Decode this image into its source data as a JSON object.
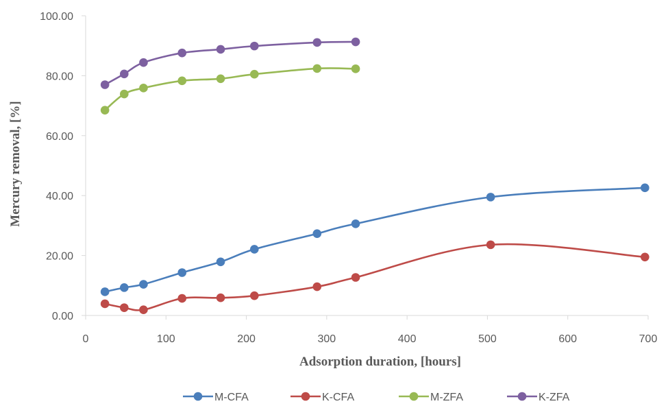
{
  "chart_data": {
    "type": "line",
    "title": "",
    "xlabel": "Adsorption duration, [hours]",
    "ylabel": "Mercury removal, [%]",
    "xlim": [
      0,
      700
    ],
    "ylim": [
      0,
      100
    ],
    "x_ticks": [
      "0",
      "100",
      "200",
      "300",
      "400",
      "500",
      "600",
      "700"
    ],
    "y_ticks": [
      "0.00",
      "20.00",
      "40.00",
      "60.00",
      "80.00",
      "100.00"
    ],
    "grid": false,
    "smooth": true,
    "legend_position": "bottom",
    "series": [
      {
        "name": "M-CFA",
        "color": "#4a7ebb",
        "points": [
          [
            24,
            7.9
          ],
          [
            48,
            9.3
          ],
          [
            72,
            10.4
          ],
          [
            120,
            14.3
          ],
          [
            168,
            17.9
          ],
          [
            210,
            22.1
          ],
          [
            288,
            27.3
          ],
          [
            336,
            30.6
          ],
          [
            504,
            39.5
          ],
          [
            696,
            42.6
          ]
        ]
      },
      {
        "name": "K-CFA",
        "color": "#be4b48",
        "points": [
          [
            24,
            3.9
          ],
          [
            48,
            2.6
          ],
          [
            72,
            1.9
          ],
          [
            120,
            5.7
          ],
          [
            168,
            5.9
          ],
          [
            210,
            6.6
          ],
          [
            288,
            9.6
          ],
          [
            336,
            12.7
          ],
          [
            504,
            23.6
          ],
          [
            696,
            19.5
          ]
        ]
      },
      {
        "name": "M-ZFA",
        "color": "#98b954",
        "points": [
          [
            24,
            68.5
          ],
          [
            48,
            73.9
          ],
          [
            72,
            75.9
          ],
          [
            120,
            78.3
          ],
          [
            168,
            79.0
          ],
          [
            210,
            80.5
          ],
          [
            288,
            82.4
          ],
          [
            336,
            82.3
          ]
        ]
      },
      {
        "name": "K-ZFA",
        "color": "#7d60a0",
        "points": [
          [
            24,
            77.0
          ],
          [
            48,
            80.6
          ],
          [
            72,
            84.4
          ],
          [
            120,
            87.6
          ],
          [
            168,
            88.8
          ],
          [
            210,
            89.9
          ],
          [
            288,
            91.1
          ],
          [
            336,
            91.3
          ]
        ]
      }
    ]
  }
}
